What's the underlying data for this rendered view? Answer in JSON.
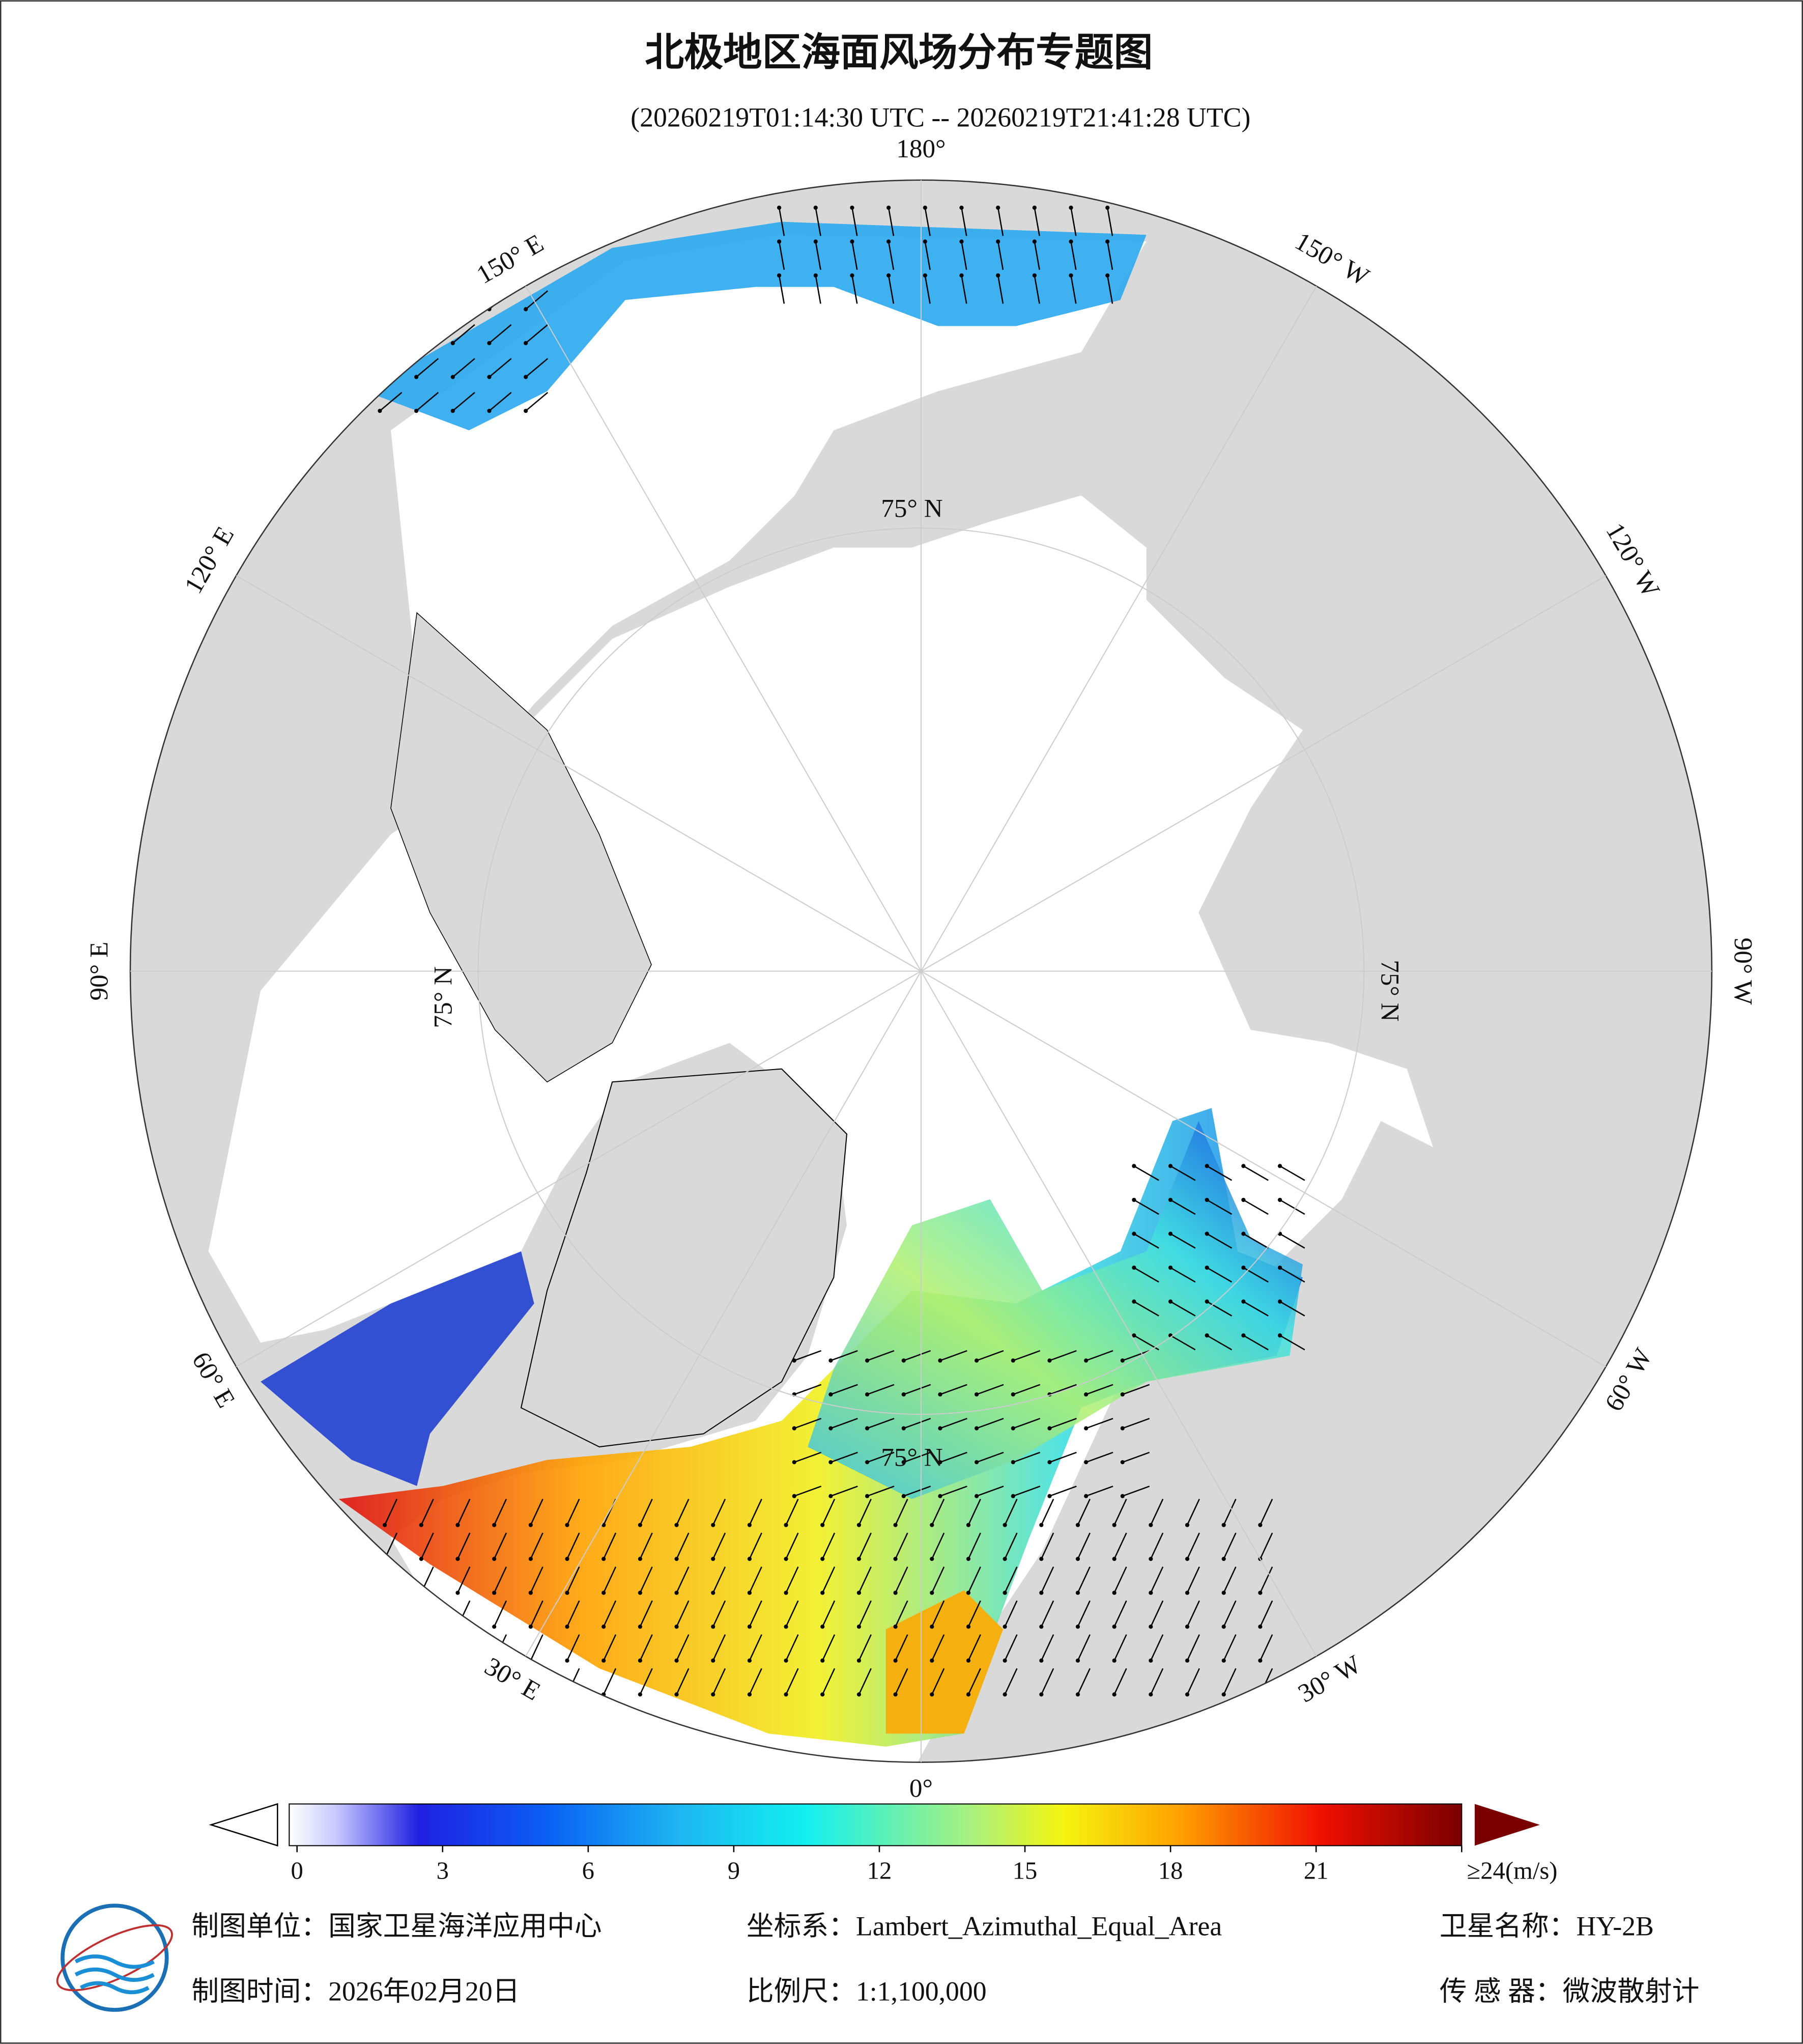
{
  "title": "北极地区海面风场分布专题图",
  "subtitle": "(20260219T01:14:30 UTC -- 20260219T21:41:28 UTC)",
  "longitude_labels": [
    "180°",
    "150° W",
    "120° W",
    "90° W",
    "60° W",
    "30° W",
    "0°",
    "30° E",
    "60° E",
    "90° E",
    "120° E",
    "150° E"
  ],
  "latitude_labels": [
    "75° N",
    "75° N",
    "75° N",
    "75° N"
  ],
  "colorbar": {
    "range": [
      0,
      24
    ],
    "ticks": [
      0,
      3,
      6,
      9,
      12,
      15,
      18,
      21,
      {
        "value": 24,
        "label": "≥24(m/s)"
      }
    ]
  },
  "footer": {
    "unit": "制图单位：国家卫星海洋应用中心",
    "coordinate_system": "坐标系：Lambert_Azimuthal_Equal_Area",
    "satellite": "卫星名称：HY-2B",
    "date": "制图时间：2026年02月20日",
    "scale": "比例尺：1:1,100,000",
    "sensor": "传 感 器：微波散射计"
  }
}
